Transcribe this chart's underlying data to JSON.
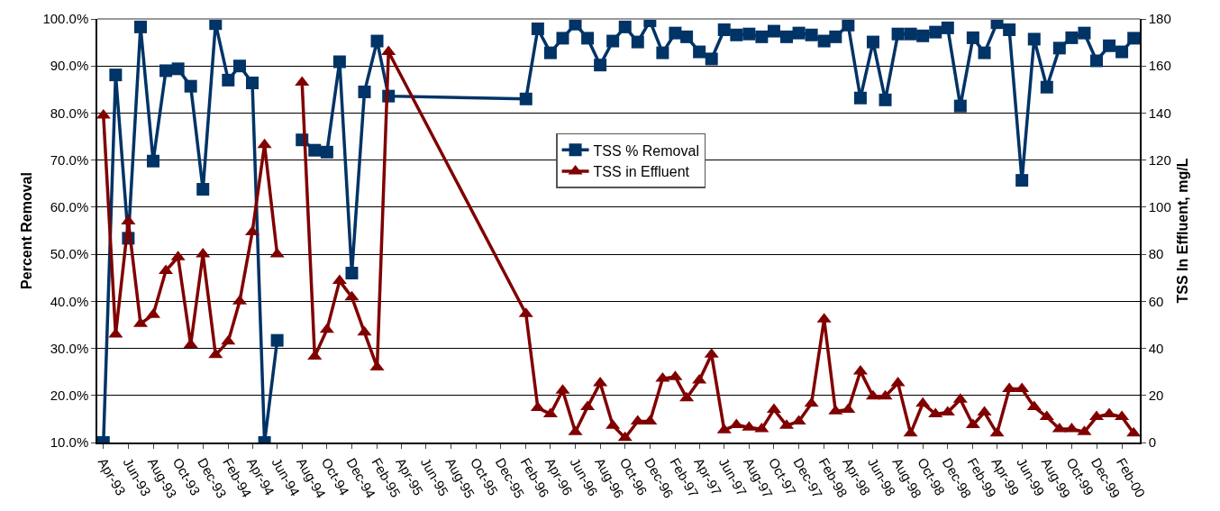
{
  "chart_data": {
    "type": "line",
    "ylabel": "Percent Removal",
    "y2label": "TSS In Effluent, mg/L",
    "x": [
      "1993-04",
      "1993-05",
      "1993-06",
      "1993-07",
      "1993-08",
      "1993-09",
      "1993-10",
      "1993-11",
      "1993-12",
      "1994-01",
      "1994-02",
      "1994-03",
      "1994-04",
      "1994-05",
      "1994-06",
      "1994-07",
      "1994-08",
      "1994-09",
      "1994-10",
      "1994-11",
      "1994-12",
      "1995-01",
      "1995-02",
      "1995-03",
      "1996-02",
      "1996-03",
      "1996-04",
      "1996-05",
      "1996-06",
      "1996-07",
      "1996-08",
      "1996-09",
      "1996-10",
      "1996-11",
      "1996-12",
      "1997-01",
      "1997-02",
      "1997-03",
      "1997-04",
      "1997-05",
      "1997-06",
      "1997-07",
      "1997-08",
      "1997-09",
      "1997-10",
      "1997-11",
      "1997-12",
      "1998-01",
      "1998-02",
      "1998-03",
      "1998-04",
      "1998-05",
      "1998-06",
      "1998-07",
      "1998-08",
      "1998-09",
      "1998-10",
      "1998-11",
      "1998-12",
      "1999-01",
      "1999-02",
      "1999-03",
      "1999-04",
      "1999-05",
      "1999-06",
      "1999-07",
      "1999-08",
      "1999-09",
      "1999-10",
      "1999-11",
      "1999-12",
      "2000-01",
      "2000-02",
      "2000-03"
    ],
    "series": [
      {
        "name": "TSS % Removal",
        "color": "#003366",
        "marker": "square",
        "values": [
          10,
          88.1,
          53.4,
          98.3,
          69.8,
          89.0,
          89.4,
          85.7,
          63.8,
          99.0,
          87.0,
          90.0,
          86.4,
          10,
          31.7,
          null,
          74.3,
          72.1,
          71.7,
          90.9,
          46.0,
          84.5,
          95.3,
          83.6,
          83.0,
          97.9,
          92.8,
          95.9,
          98.9,
          95.9,
          90.2,
          95.3,
          98.3,
          95.1,
          99.6,
          92.8,
          97.0,
          96.2,
          93.0,
          91.5,
          97.7,
          96.6,
          96.8,
          96.2,
          97.4,
          96.2,
          97.0,
          96.6,
          95.3,
          96.2,
          98.7,
          83.2,
          95.1,
          82.8,
          96.8,
          96.8,
          96.4,
          97.2,
          98.1,
          81.5,
          96.0,
          92.8,
          99.2,
          97.7,
          65.7,
          95.7,
          85.5,
          93.8,
          96.0,
          97.0,
          91.1,
          94.3,
          93.0,
          95.9
        ]
      },
      {
        "name": "TSS in Effluent",
        "color": "#800000",
        "marker": "triangle",
        "axis": "y2",
        "values": [
          139,
          46,
          94,
          50.5,
          54.3,
          73,
          78.8,
          41.6,
          80,
          37.2,
          43,
          60,
          89.4,
          126.5,
          80,
          null,
          153,
          36.6,
          48,
          68.7,
          61.8,
          46.8,
          32,
          166,
          54.7,
          14.7,
          12.1,
          22.1,
          4.5,
          15.1,
          25.3,
          7.2,
          2,
          9,
          9,
          27.2,
          27.9,
          18.9,
          26.4,
          37.4,
          5.3,
          7.5,
          6.4,
          5.7,
          14,
          7.2,
          9,
          16.6,
          52.4,
          13.3,
          14,
          30.3,
          19.6,
          19.6,
          25.3,
          3.9,
          16.6,
          12.1,
          12.8,
          18.3,
          7.5,
          12.8,
          3.9,
          22.8,
          22.8,
          15.1,
          10.9,
          5.7,
          5.7,
          4.5,
          10.9,
          12.1,
          10.9,
          3.9
        ]
      }
    ],
    "xlim": [
      "1993-03-17",
      "2000-03-16"
    ],
    "xticks": [
      {
        "value": "1993-04",
        "label": "Apr-93"
      },
      {
        "value": "1993-06",
        "label": "Jun-93"
      },
      {
        "value": "1993-08",
        "label": "Aug-93"
      },
      {
        "value": "1993-10",
        "label": "Oct-93"
      },
      {
        "value": "1993-12",
        "label": "Dec-93"
      },
      {
        "value": "1994-02",
        "label": "Feb-94"
      },
      {
        "value": "1994-04",
        "label": "Apr-94"
      },
      {
        "value": "1994-06",
        "label": "Jun-94"
      },
      {
        "value": "1994-08",
        "label": "Aug-94"
      },
      {
        "value": "1994-10",
        "label": "Oct-94"
      },
      {
        "value": "1994-12",
        "label": "Dec-94"
      },
      {
        "value": "1995-02",
        "label": "Feb-95"
      },
      {
        "value": "1995-04",
        "label": "Apr-95"
      },
      {
        "value": "1995-06",
        "label": "Jun-95"
      },
      {
        "value": "1995-08",
        "label": "Aug-95"
      },
      {
        "value": "1995-10",
        "label": "Oct-95"
      },
      {
        "value": "1995-12",
        "label": "Dec-95"
      },
      {
        "value": "1996-02",
        "label": "Feb-96"
      },
      {
        "value": "1996-04",
        "label": "Apr-96"
      },
      {
        "value": "1996-06",
        "label": "Jun-96"
      },
      {
        "value": "1996-08",
        "label": "Aug-96"
      },
      {
        "value": "1996-10",
        "label": "Oct-96"
      },
      {
        "value": "1996-12",
        "label": "Dec-96"
      },
      {
        "value": "1997-02",
        "label": "Feb-97"
      },
      {
        "value": "1997-04",
        "label": "Apr-97"
      },
      {
        "value": "1997-06",
        "label": "Jun-97"
      },
      {
        "value": "1997-08",
        "label": "Aug-97"
      },
      {
        "value": "1997-10",
        "label": "Oct-97"
      },
      {
        "value": "1997-12",
        "label": "Dec-97"
      },
      {
        "value": "1998-02",
        "label": "Feb-98"
      },
      {
        "value": "1998-04",
        "label": "Apr-98"
      },
      {
        "value": "1998-06",
        "label": "Jun-98"
      },
      {
        "value": "1998-08",
        "label": "Aug-98"
      },
      {
        "value": "1998-10",
        "label": "Oct-98"
      },
      {
        "value": "1998-12",
        "label": "Dec-98"
      },
      {
        "value": "1999-02",
        "label": "Feb-99"
      },
      {
        "value": "1999-04",
        "label": "Apr-99"
      },
      {
        "value": "1999-06",
        "label": "Jun-99"
      },
      {
        "value": "1999-08",
        "label": "Aug-99"
      },
      {
        "value": "1999-10",
        "label": "Oct-99"
      },
      {
        "value": "1999-12",
        "label": "Dec-99"
      },
      {
        "value": "2000-02",
        "label": "Feb-00"
      }
    ],
    "ylim": [
      10,
      100
    ],
    "yticks": [
      {
        "value": 10,
        "label": "10.0%"
      },
      {
        "value": 20,
        "label": "20.0%"
      },
      {
        "value": 30,
        "label": "30.0%"
      },
      {
        "value": 40,
        "label": "40.0%"
      },
      {
        "value": 50,
        "label": "50.0%"
      },
      {
        "value": 60,
        "label": "60.0%"
      },
      {
        "value": 70,
        "label": "70.0%"
      },
      {
        "value": 80,
        "label": "80.0%"
      },
      {
        "value": 90,
        "label": "90.0%"
      },
      {
        "value": 100,
        "label": "100.0%"
      }
    ],
    "y2lim": [
      0,
      180
    ],
    "y2ticks": [
      0,
      20,
      40,
      60,
      80,
      100,
      120,
      140,
      160,
      180
    ],
    "grid": "y",
    "legend": "center",
    "line_style": "solid"
  }
}
